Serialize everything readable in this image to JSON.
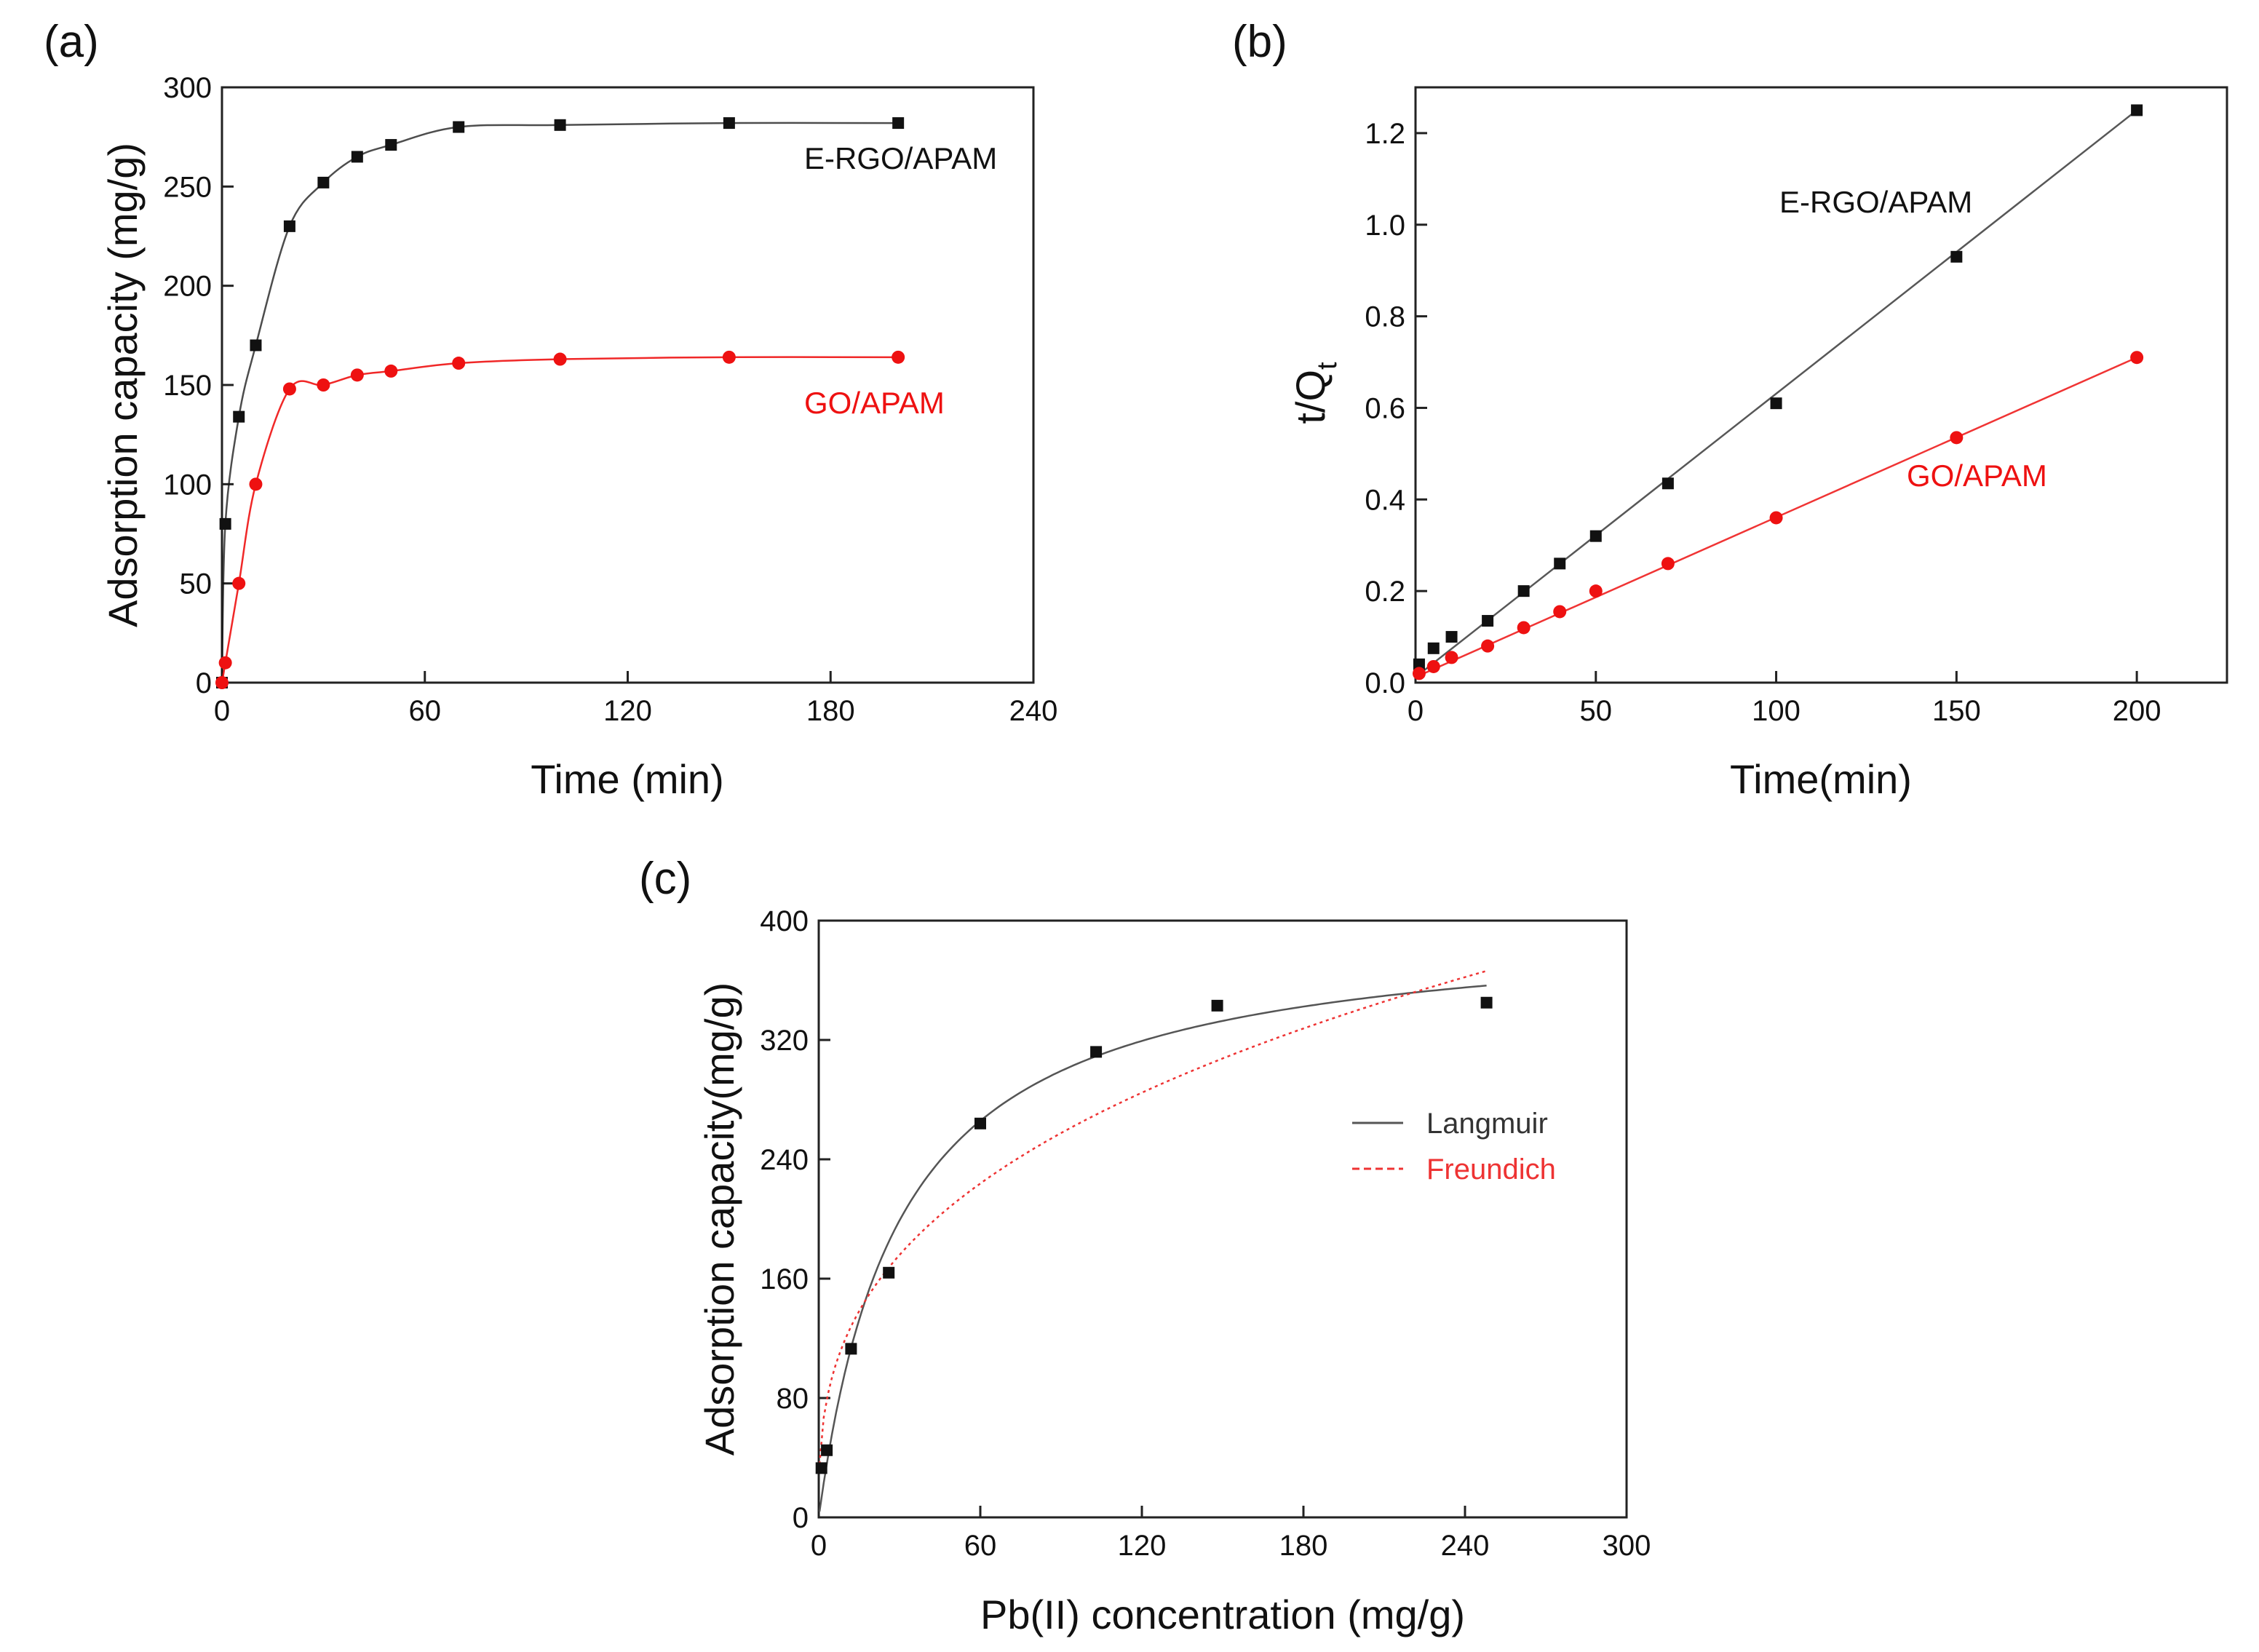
{
  "chart_data": [
    {
      "panel": "(a)",
      "type": "line",
      "xlabel": "Time (min)",
      "ylabel": "Adsorption capacity (mg/g)",
      "xlim": [
        0,
        240
      ],
      "ylim": [
        0,
        300
      ],
      "xticks": [
        0,
        60,
        120,
        180,
        240
      ],
      "yticks": [
        0,
        50,
        100,
        150,
        200,
        250,
        300
      ],
      "series": [
        {
          "name": "E-RGO/APAM",
          "color": "#111111",
          "marker": "square",
          "x": [
            0,
            1,
            5,
            10,
            20,
            30,
            40,
            50,
            70,
            100,
            150,
            200
          ],
          "y": [
            0,
            80,
            134,
            170,
            230,
            252,
            265,
            271,
            280,
            281,
            282,
            282
          ]
        },
        {
          "name": "GO/APAM",
          "color": "#ee1111",
          "marker": "circle",
          "x": [
            0,
            1,
            5,
            10,
            20,
            30,
            40,
            50,
            70,
            100,
            150,
            200
          ],
          "y": [
            0,
            10,
            50,
            100,
            148,
            150,
            155,
            157,
            161,
            163,
            164,
            164
          ]
        }
      ]
    },
    {
      "panel": "(b)",
      "type": "line",
      "xlabel": "Time(min)",
      "ylabel_main": "t/Q",
      "ylabel_sub": "t",
      "xlim": [
        0,
        225
      ],
      "ylim": [
        0,
        1.3
      ],
      "xticks": [
        0,
        50,
        100,
        150,
        200
      ],
      "yticks": [
        0.0,
        0.2,
        0.4,
        0.6,
        0.8,
        1.0,
        1.2
      ],
      "ytick_labels": [
        "0.0",
        "0.2",
        "0.4",
        "0.6",
        "0.8",
        "1.0",
        "1.2"
      ],
      "series": [
        {
          "name": "E-RGO/APAM",
          "color": "#111111",
          "marker": "square",
          "x": [
            1,
            5,
            10,
            20,
            30,
            40,
            50,
            70,
            100,
            150,
            200
          ],
          "y": [
            0.04,
            0.075,
            0.1,
            0.135,
            0.2,
            0.26,
            0.32,
            0.435,
            0.61,
            0.93,
            1.25
          ],
          "fit": [
            [
              0,
              0.012
            ],
            [
              200,
              1.25
            ]
          ]
        },
        {
          "name": "GO/APAM",
          "color": "#ee1111",
          "marker": "circle",
          "x": [
            1,
            5,
            10,
            20,
            30,
            40,
            50,
            70,
            100,
            150,
            200
          ],
          "y": [
            0.02,
            0.035,
            0.055,
            0.08,
            0.12,
            0.155,
            0.2,
            0.26,
            0.36,
            0.535,
            0.71
          ],
          "fit": [
            [
              0,
              0.012
            ],
            [
              200,
              0.71
            ]
          ]
        }
      ]
    },
    {
      "panel": "(c)",
      "type": "scatter",
      "xlabel": "Pb(II) concentration (mg/g)",
      "ylabel": "Adsorption capacity(mg/g)",
      "xlim": [
        0,
        300
      ],
      "ylim": [
        0,
        400
      ],
      "xticks": [
        0,
        60,
        120,
        180,
        240,
        300
      ],
      "yticks": [
        0,
        80,
        160,
        240,
        320,
        400
      ],
      "points": {
        "color": "#111111",
        "marker": "square",
        "x": [
          1,
          3,
          12,
          26,
          60,
          103,
          148,
          248
        ],
        "y": [
          33,
          45,
          113,
          164,
          264,
          312,
          343,
          345
        ]
      },
      "fits": [
        {
          "name": "Langmuir",
          "color": "#555555",
          "style": "solid",
          "model": "langmuir",
          "qmax": 400,
          "k": 0.033,
          "xmax": 248
        },
        {
          "name": "Freundich",
          "color": "#ee3333",
          "style": "dashed",
          "model": "freundlich",
          "kf": 54,
          "n": 2.88,
          "xmax": 248
        }
      ],
      "legend_position": "center-right"
    }
  ]
}
